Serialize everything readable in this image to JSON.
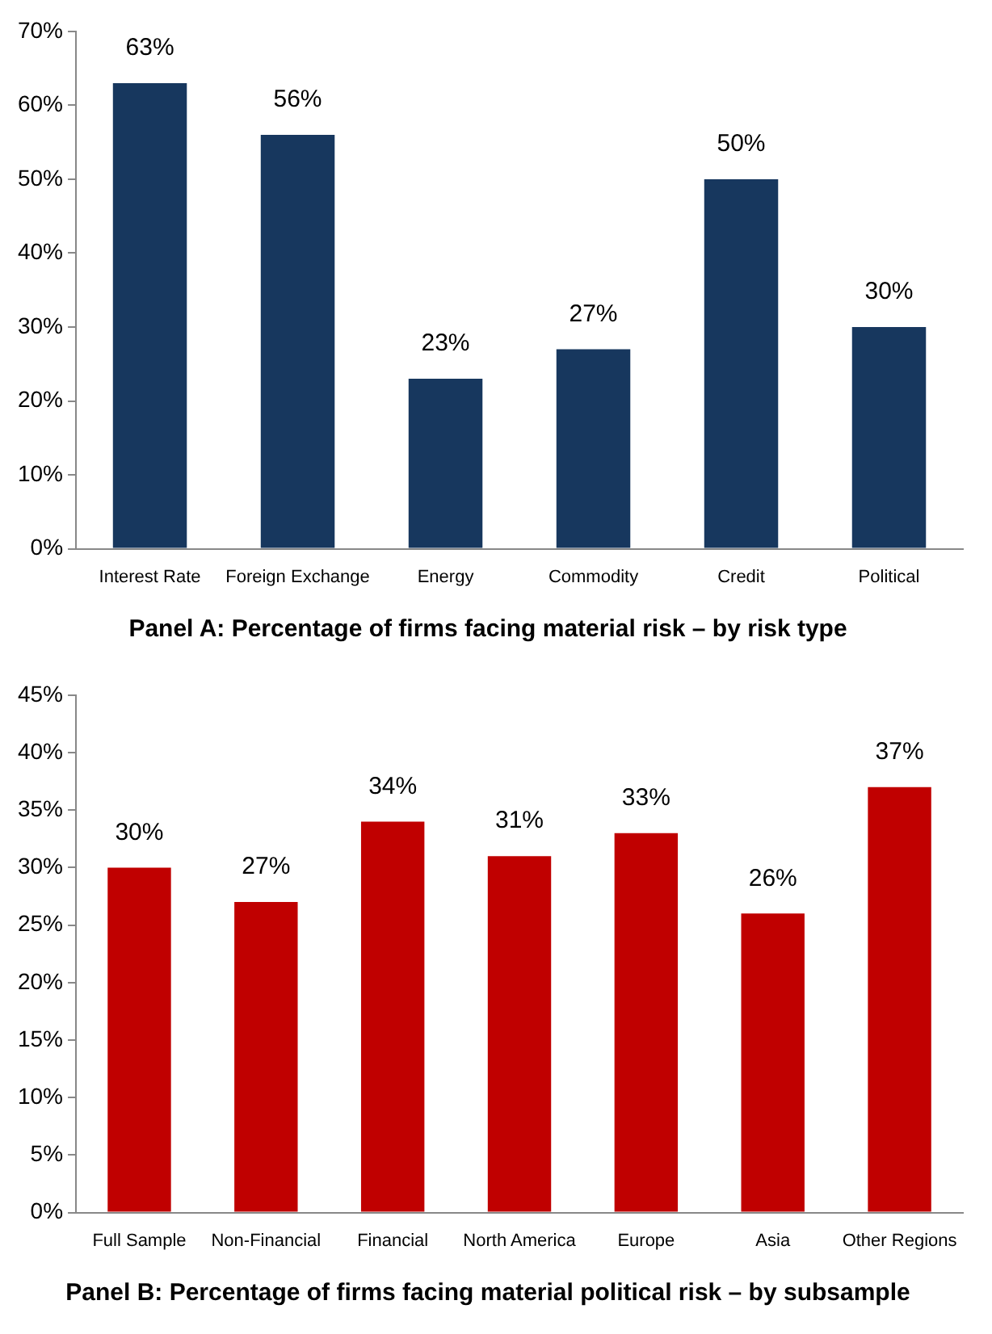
{
  "chart_data": [
    {
      "type": "bar",
      "title": "Panel A: Percentage of firms facing material risk – by risk type",
      "categories": [
        "Interest Rate",
        "Foreign Exchange",
        "Energy",
        "Commodity",
        "Credit",
        "Political"
      ],
      "values": [
        63,
        56,
        23,
        27,
        50,
        30
      ],
      "value_labels": [
        "63%",
        "56%",
        "23%",
        "27%",
        "50%",
        "30%"
      ],
      "color": "#17375e",
      "ylim": [
        0,
        70
      ],
      "yticks": [
        {
          "value": 0,
          "label": "0%"
        },
        {
          "value": 10,
          "label": "10%"
        },
        {
          "value": 20,
          "label": "20%"
        },
        {
          "value": 30,
          "label": "30%"
        },
        {
          "value": 40,
          "label": "40%"
        },
        {
          "value": 50,
          "label": "50%"
        },
        {
          "value": 60,
          "label": "60%"
        },
        {
          "value": 70,
          "label": "70%"
        }
      ],
      "grid": false,
      "legend": false
    },
    {
      "type": "bar",
      "title": "Panel B: Percentage of firms facing material political risk – by subsample",
      "categories": [
        "Full Sample",
        "Non-Financial",
        "Financial",
        "North America",
        "Europe",
        "Asia",
        "Other Regions"
      ],
      "values": [
        30,
        27,
        34,
        31,
        33,
        26,
        37
      ],
      "value_labels": [
        "30%",
        "27%",
        "34%",
        "31%",
        "33%",
        "26%",
        "37%"
      ],
      "color": "#c00000",
      "ylim": [
        0,
        45
      ],
      "yticks": [
        {
          "value": 0,
          "label": "0%"
        },
        {
          "value": 5,
          "label": "5%"
        },
        {
          "value": 10,
          "label": "10%"
        },
        {
          "value": 15,
          "label": "15%"
        },
        {
          "value": 20,
          "label": "20%"
        },
        {
          "value": 25,
          "label": "25%"
        },
        {
          "value": 30,
          "label": "30%"
        },
        {
          "value": 35,
          "label": "35%"
        },
        {
          "value": 40,
          "label": "40%"
        },
        {
          "value": 45,
          "label": "45%"
        }
      ],
      "grid": false,
      "legend": false
    }
  ]
}
